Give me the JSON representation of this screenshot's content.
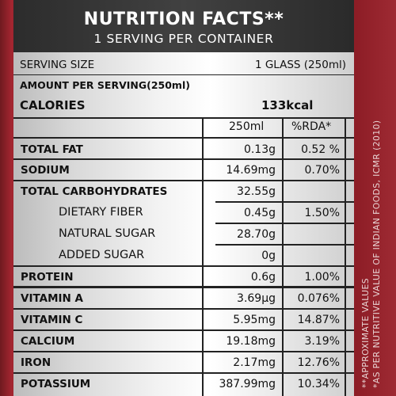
{
  "header": {
    "title": "NUTRITION FACTS**",
    "subtitle": "1 SERVING PER CONTAINER"
  },
  "serving": {
    "label": "SERVING SIZE",
    "value": "1 GLASS (250ml)"
  },
  "amount_per_serving": "AMOUNT PER SERVING(250ml)",
  "calories": {
    "label": "CALORIES",
    "value": "133kcal"
  },
  "table": {
    "columns": [
      "250ml",
      "%RDA*"
    ],
    "rows": [
      {
        "name": "TOTAL FAT",
        "amount": "0.13g",
        "rda": "0.52 %"
      },
      {
        "name": "SODIUM",
        "amount": "14.69mg",
        "rda": "0.70%"
      },
      {
        "name": "TOTAL CARBOHYDRATES",
        "amount": "32.55g",
        "rda": ""
      },
      {
        "name": "DIETARY FIBER",
        "amount": "0.45g",
        "rda": "1.50%"
      },
      {
        "name": "NATURAL SUGAR",
        "amount": "28.70g",
        "rda": ""
      },
      {
        "name": "ADDED SUGAR",
        "amount": "0g",
        "rda": ""
      },
      {
        "name": "PROTEIN",
        "amount": "0.6g",
        "rda": "1.00%"
      },
      {
        "name": "VITAMIN A",
        "amount": "3.69µg",
        "rda": "0.076%"
      },
      {
        "name": "VITAMIN C",
        "amount": "5.95mg",
        "rda": "14.87%"
      },
      {
        "name": "CALCIUM",
        "amount": "19.18mg",
        "rda": "3.19%"
      },
      {
        "name": "IRON",
        "amount": "2.17mg",
        "rda": "12.76%"
      },
      {
        "name": "POTASSIUM",
        "amount": "387.99mg",
        "rda": "10.34%"
      }
    ]
  },
  "footnotes": {
    "approximate": "**APPROXIMATE VALUES",
    "source": "*AS PER NUTRITIVE VALUE OF INDIAN FOODS, ICMR (2010)"
  },
  "colors": {
    "background_red": "#8f1e26",
    "header_dark": "#333333",
    "text": "#111111"
  }
}
